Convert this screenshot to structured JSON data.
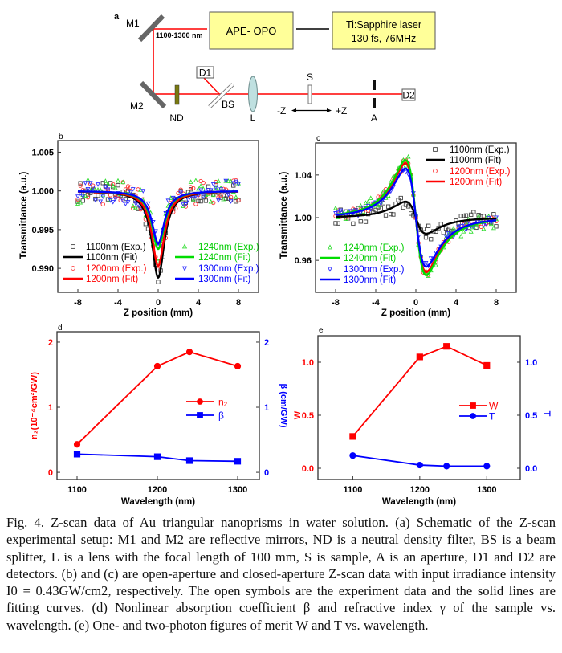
{
  "schematic": {
    "panel_label": "a",
    "m1": "M1",
    "m2": "M2",
    "wavelength_range": "1100-1300 nm",
    "opo": "APE- OPO",
    "laser_line1": "Ti:Sapphire laser",
    "laser_line2": "130 fs, 76MHz",
    "d1": "D1",
    "d2": "D2",
    "nd": "ND",
    "bs": "BS",
    "lens": "L",
    "sample": "S",
    "minus_z": "-Z",
    "plus_z": "+Z",
    "aperture": "A",
    "colors": {
      "beam": "#ff0000",
      "box": "#ffff99",
      "nd": "#7a7a10",
      "lens": "#bfe0e0",
      "mirror": "#666666"
    }
  },
  "chart_data": [
    {
      "id": "b",
      "panel_label": "b",
      "type": "scatter+line",
      "model": "open-aperture",
      "xlabel": "Z position (mm)",
      "ylabel": "Transmittance (a.u.)",
      "xlim": [
        -10,
        10
      ],
      "ylim": [
        0.9869,
        1.0065
      ],
      "xticks": [
        -8,
        -4,
        0,
        4,
        8
      ],
      "xtick_labels": [
        "-8",
        "-4",
        "0",
        "4",
        "8"
      ],
      "yticks": [
        0.99,
        0.995,
        1.0,
        1.005
      ],
      "ytick_labels": [
        "0.990",
        "0.995",
        "1.000",
        "1.005"
      ],
      "z_range": [
        -8,
        8
      ],
      "z0_mm": 0.75,
      "series": [
        {
          "name": "1100nm",
          "exp_label": "1100nm (Exp.)",
          "fit_label": "1100nm (Fit)",
          "color": "#000000",
          "symbol_color": "#444444",
          "marker": "square",
          "min_T": 0.9888,
          "noise": 0.0013
        },
        {
          "name": "1200nm",
          "exp_label": "1200nm (Exp.)",
          "fit_label": "1200nm (Fit)",
          "color": "#ff0000",
          "symbol_color": "#ff3030",
          "marker": "circle",
          "min_T": 0.9903,
          "noise": 0.0016
        },
        {
          "name": "1240nm",
          "exp_label": "1240nm (Exp.)",
          "fit_label": "1240nm (Fit)",
          "color": "#00dd00",
          "symbol_color": "#33dd33",
          "marker": "triangle-up",
          "min_T": 0.9925,
          "noise": 0.0017
        },
        {
          "name": "1300nm",
          "exp_label": "1300nm (Exp.)",
          "fit_label": "1300nm (Fit)",
          "color": "#0000ff",
          "symbol_color": "#3030ff",
          "marker": "triangle-down",
          "min_T": 0.9932,
          "noise": 0.0014
        }
      ]
    },
    {
      "id": "c",
      "panel_label": "c",
      "type": "scatter+line",
      "model": "closed-aperture",
      "xlabel": "Z position (mm)",
      "ylabel": "Transmittance (a.u.)",
      "xlim": [
        -10,
        10
      ],
      "ylim": [
        0.93,
        1.07
      ],
      "xticks": [
        -8,
        -4,
        0,
        4,
        8
      ],
      "xtick_labels": [
        "-8",
        "-4",
        "0",
        "4",
        "8"
      ],
      "yticks": [
        0.96,
        1.0,
        1.04
      ],
      "ytick_labels": [
        "0.96",
        "1.00",
        "1.04"
      ],
      "z_range": [
        -8,
        8
      ],
      "z0_mm": 1.2,
      "series": [
        {
          "name": "1100nm",
          "exp_label": "1100nm (Exp.)",
          "fit_label": "1100nm (Fit)",
          "color": "#000000",
          "symbol_color": "#444444",
          "marker": "square",
          "peak_valley_amplitude": 0.015,
          "noise": 0.008
        },
        {
          "name": "1200nm",
          "exp_label": "1200nm (Exp.)",
          "fit_label": "1200nm (Fit)",
          "color": "#ff0000",
          "symbol_color": "#ff3030",
          "marker": "circle",
          "peak_valley_amplitude": 0.051,
          "noise": 0.004
        },
        {
          "name": "1240nm",
          "exp_label": "1240nm (Exp.)",
          "fit_label": "1240nm (Fit)",
          "color": "#00dd00",
          "symbol_color": "#33dd33",
          "marker": "triangle-up",
          "peak_valley_amplitude": 0.054,
          "noise": 0.007
        },
        {
          "name": "1300nm",
          "exp_label": "1300nm (Exp.)",
          "fit_label": "1300nm (Fit)",
          "color": "#0000ff",
          "symbol_color": "#3030ff",
          "marker": "triangle-down",
          "peak_valley_amplitude": 0.046,
          "noise": 0.004
        }
      ]
    },
    {
      "id": "d",
      "panel_label": "d",
      "type": "line",
      "xlabel": "Wavelength (nm)",
      "ylabel_left": "n₂(10⁻⁴cm²/GW)",
      "ylabel_right": "β (cm/GW)",
      "x": [
        1100,
        1200,
        1240,
        1300
      ],
      "xlim": [
        1075,
        1327
      ],
      "ylim": [
        -0.11,
        2.16
      ],
      "xticks": [
        1100,
        1200,
        1300
      ],
      "xtick_labels": [
        "1100",
        "1200",
        "1300"
      ],
      "yticks": [
        0,
        1,
        2
      ],
      "ytick_labels_left": [
        "0",
        "1",
        "2"
      ],
      "ytick_labels_right": [
        "0",
        "1",
        "2"
      ],
      "series": [
        {
          "name": "n₂",
          "axis": "left",
          "color": "#ff0000",
          "marker": "circle",
          "values": [
            0.43,
            1.63,
            1.85,
            1.63
          ]
        },
        {
          "name": "β",
          "axis": "right",
          "color": "#0000ff",
          "marker": "square",
          "values": [
            0.28,
            0.24,
            0.18,
            0.17
          ]
        }
      ]
    },
    {
      "id": "e",
      "panel_label": "e",
      "type": "line",
      "xlabel": "Wavelength (nm)",
      "ylabel_left": "W",
      "ylabel_right": "T",
      "x": [
        1100,
        1200,
        1240,
        1300
      ],
      "xlim": [
        1048,
        1350
      ],
      "ylim": [
        -0.106,
        1.25
      ],
      "xticks": [
        1100,
        1200,
        1300
      ],
      "xtick_labels": [
        "1100",
        "1200",
        "1300"
      ],
      "yticks": [
        0,
        0.5,
        1.0
      ],
      "ytick_labels_left": [
        "0.0",
        "0.5",
        "1.0"
      ],
      "ytick_labels_right": [
        "0.0",
        "0.5",
        "1.0"
      ],
      "series": [
        {
          "name": "W",
          "axis": "left",
          "color": "#ff0000",
          "marker": "square",
          "values": [
            0.3,
            1.05,
            1.15,
            0.97
          ]
        },
        {
          "name": "T",
          "axis": "right",
          "color": "#0000ff",
          "marker": "circle",
          "values": [
            0.12,
            0.03,
            0.02,
            0.02
          ]
        }
      ]
    }
  ],
  "caption": "Fig. 4. Z-scan data of Au triangular nanoprisms in water solution. (a) Schematic of the Z-scan experimental setup: M1 and M2 are reflective mirrors, ND is a neutral density filter, BS is a beam splitter, L is a lens with the focal length of 100 mm, S is sample, A is an aperture, D1 and D2 are detectors. (b) and (c) are open-aperture and closed-aperture Z-scan data with input irradiance intensity I0 = 0.43GW/cm2, respectively. The open symbols are the experiment data and the solid lines are fitting curves. (d) Nonlinear absorption coefficient β and refractive index γ of the sample vs. wavelength. (e) One- and two-photon figures of merit W and T vs. wavelength."
}
